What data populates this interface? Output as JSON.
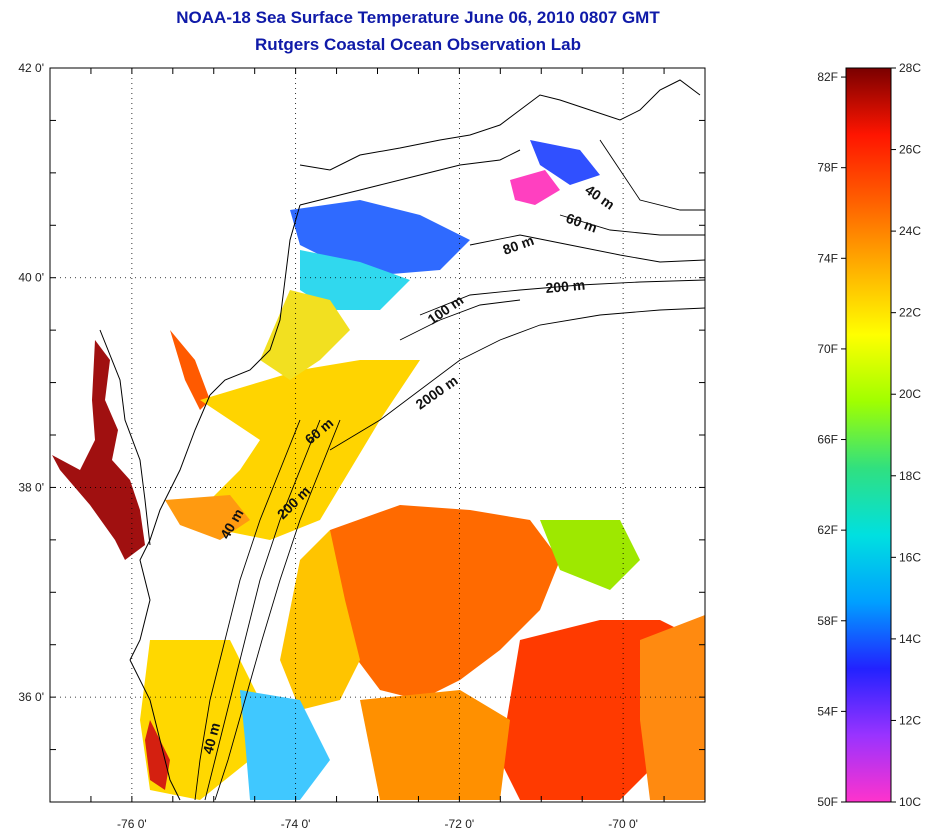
{
  "title": {
    "line1": "NOAA-18 Sea Surface Temperature June 06, 2010 0807 GMT",
    "line2": "Rutgers Coastal Ocean Observation Lab"
  },
  "map": {
    "lon_range": [
      -77.0,
      -69.0
    ],
    "lat_range": [
      35.0,
      42.0
    ],
    "grid": "dotted",
    "lon_ticks": [
      {
        "value": -76,
        "label": "-76 0'"
      },
      {
        "value": -74,
        "label": "-74 0'"
      },
      {
        "value": -72,
        "label": "-72 0'"
      },
      {
        "value": -70,
        "label": "-70 0'"
      }
    ],
    "lat_ticks": [
      {
        "value": 42,
        "label": "42 0'"
      },
      {
        "value": 40,
        "label": "40 0'"
      },
      {
        "value": 38,
        "label": "38 0'"
      },
      {
        "value": 36,
        "label": "36 0'"
      }
    ],
    "contour_labels": [
      {
        "text": "40 m"
      },
      {
        "text": "60 m"
      },
      {
        "text": "80 m"
      },
      {
        "text": "200 m"
      },
      {
        "text": "100 m"
      },
      {
        "text": "2000 m"
      },
      {
        "text": "60 m"
      },
      {
        "text": "200 m"
      },
      {
        "text": "40 m"
      },
      {
        "text": "40 m"
      }
    ]
  },
  "colorbar": {
    "colors": [
      "#ff33cc",
      "#9933ff",
      "#2222ff",
      "#00a0ff",
      "#00e0e0",
      "#30e080",
      "#a0ff00",
      "#ffff00",
      "#ffb000",
      "#ff6000",
      "#ff1500",
      "#7a0000"
    ],
    "fahrenheit_labels": [
      "82F",
      "78F",
      "74F",
      "70F",
      "66F",
      "62F",
      "58F",
      "54F",
      "50F"
    ],
    "celsius_labels": [
      "28C",
      "26C",
      "24C",
      "22C",
      "20C",
      "18C",
      "16C",
      "14C",
      "12C",
      "10C"
    ],
    "range_c": [
      10,
      28
    ]
  }
}
